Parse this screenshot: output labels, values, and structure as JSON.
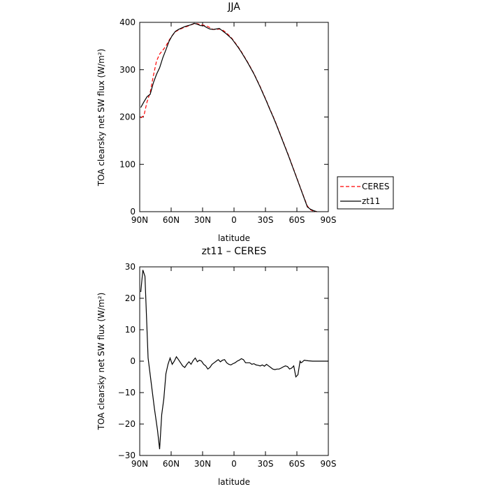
{
  "chart_data": [
    {
      "type": "line",
      "title": "JJA",
      "xlabel": "latitude",
      "ylabel": "TOA clearsky net SW flux (W/m²)",
      "xlim": [
        90,
        -90
      ],
      "ylim": [
        0,
        400
      ],
      "grid": false,
      "legend_position": "right",
      "x_ticks": [
        90,
        60,
        30,
        0,
        -30,
        -60,
        -90
      ],
      "x_tick_labels": [
        "90N",
        "60N",
        "30N",
        "0",
        "30S",
        "60S",
        "90S"
      ],
      "y_ticks": [
        0,
        100,
        200,
        300,
        400
      ],
      "y_tick_labels": [
        "0",
        "100",
        "200",
        "300",
        "400"
      ],
      "series": [
        {
          "name": "CERES",
          "color": "#ff0000",
          "dash": "dashed",
          "points": [
            [
              89,
              198
            ],
            [
              86,
              203
            ],
            [
              83,
              232
            ],
            [
              80,
              252
            ],
            [
              77,
              287
            ],
            [
              74,
              318
            ],
            [
              71,
              333
            ],
            [
              68,
              341
            ],
            [
              65,
              350
            ],
            [
              62,
              362
            ],
            [
              59,
              372
            ],
            [
              56,
              380
            ],
            [
              53,
              384
            ],
            [
              50,
              387
            ],
            [
              47,
              390
            ],
            [
              44,
              392
            ],
            [
              41,
              395
            ],
            [
              38,
              397
            ],
            [
              35,
              397
            ],
            [
              32,
              395
            ],
            [
              29,
              394
            ],
            [
              26,
              392
            ],
            [
              23,
              389
            ],
            [
              20,
              385
            ],
            [
              17,
              385
            ],
            [
              14,
              386
            ],
            [
              11,
              384
            ],
            [
              8,
              379
            ],
            [
              5,
              373
            ],
            [
              2,
              366
            ],
            [
              -1,
              357
            ],
            [
              -4,
              348
            ],
            [
              -7,
              338
            ],
            [
              -10,
              327
            ],
            [
              -13,
              316
            ],
            [
              -16,
              304
            ],
            [
              -19,
              292
            ],
            [
              -22,
              278
            ],
            [
              -25,
              264
            ],
            [
              -28,
              249
            ],
            [
              -31,
              234
            ],
            [
              -34,
              218
            ],
            [
              -37,
              203
            ],
            [
              -40,
              187
            ],
            [
              -43,
              170
            ],
            [
              -46,
              153
            ],
            [
              -49,
              136
            ],
            [
              -52,
              119
            ],
            [
              -55,
              101
            ],
            [
              -58,
              83
            ],
            [
              -61,
              65
            ],
            [
              -64,
              47
            ],
            [
              -67,
              29
            ],
            [
              -70,
              12
            ],
            [
              -73,
              4
            ],
            [
              -76,
              1
            ],
            [
              -79,
              0
            ]
          ]
        },
        {
          "name": "zt11",
          "color": "#000000",
          "dash": "solid",
          "points": [
            [
              89,
              220
            ],
            [
              86,
              232
            ],
            [
              83,
              243
            ],
            [
              80,
              248
            ],
            [
              77,
              272
            ],
            [
              74,
              290
            ],
            [
              71,
              304
            ],
            [
              68,
              325
            ],
            [
              65,
              342
            ],
            [
              62,
              360
            ],
            [
              59,
              372
            ],
            [
              56,
              381
            ],
            [
              53,
              385
            ],
            [
              50,
              388
            ],
            [
              47,
              391
            ],
            [
              44,
              393
            ],
            [
              41,
              395
            ],
            [
              38,
              398
            ],
            [
              35,
              396
            ],
            [
              32,
              393
            ],
            [
              29,
              393
            ],
            [
              26,
              389
            ],
            [
              23,
              386
            ],
            [
              20,
              385
            ],
            [
              17,
              386
            ],
            [
              14,
              387
            ],
            [
              11,
              382
            ],
            [
              8,
              377
            ],
            [
              5,
              371
            ],
            [
              2,
              365
            ],
            [
              -1,
              356
            ],
            [
              -4,
              347
            ],
            [
              -7,
              337
            ],
            [
              -10,
              326
            ],
            [
              -13,
              315
            ],
            [
              -16,
              303
            ],
            [
              -19,
              291
            ],
            [
              -22,
              277
            ],
            [
              -25,
              263
            ],
            [
              -28,
              248
            ],
            [
              -31,
              233
            ],
            [
              -34,
              217
            ],
            [
              -37,
              202
            ],
            [
              -40,
              186
            ],
            [
              -43,
              169
            ],
            [
              -46,
              152
            ],
            [
              -49,
              135
            ],
            [
              -52,
              118
            ],
            [
              -55,
              100
            ],
            [
              -58,
              82
            ],
            [
              -61,
              64
            ],
            [
              -64,
              46
            ],
            [
              -67,
              28
            ],
            [
              -70,
              10
            ],
            [
              -73,
              5
            ],
            [
              -76,
              2
            ],
            [
              -79,
              0
            ]
          ]
        }
      ]
    },
    {
      "type": "line",
      "title": "zt11 – CERES",
      "xlabel": "latitude",
      "ylabel": "TOA clearsky net SW flux (W/m²)",
      "xlim": [
        90,
        -90
      ],
      "ylim": [
        -30,
        30
      ],
      "grid": false,
      "x_ticks": [
        90,
        60,
        30,
        0,
        -30,
        -60,
        -90
      ],
      "x_tick_labels": [
        "90N",
        "60N",
        "30N",
        "0",
        "30S",
        "60S",
        "90S"
      ],
      "y_ticks": [
        -30,
        -20,
        -10,
        0,
        10,
        20,
        30
      ],
      "y_tick_labels": [
        "−30",
        "−20",
        "−10",
        "0",
        "10",
        "20",
        "30"
      ],
      "series": [
        {
          "color": "#000000",
          "dash": "solid",
          "points": [
            [
              89,
              22
            ],
            [
              87,
              29
            ],
            [
              85,
              27
            ],
            [
              82,
              1
            ],
            [
              79,
              -7
            ],
            [
              76,
              -15
            ],
            [
              73,
              -22
            ],
            [
              71,
              -28
            ],
            [
              69,
              -17
            ],
            [
              67,
              -12
            ],
            [
              65,
              -4
            ],
            [
              63,
              -1
            ],
            [
              61,
              1
            ],
            [
              59,
              -1
            ],
            [
              57,
              0
            ],
            [
              55,
              1.4
            ],
            [
              53,
              0.5
            ],
            [
              51,
              -0.5
            ],
            [
              49,
              -1.5
            ],
            [
              47,
              -2
            ],
            [
              45,
              -1
            ],
            [
              43,
              -0.2
            ],
            [
              41,
              -1
            ],
            [
              39,
              0.2
            ],
            [
              37,
              1
            ],
            [
              35,
              -0.2
            ],
            [
              33,
              0.3
            ],
            [
              31,
              0
            ],
            [
              29,
              -1
            ],
            [
              27,
              -1.5
            ],
            [
              25,
              -2.5
            ],
            [
              23,
              -2
            ],
            [
              21,
              -1
            ],
            [
              19,
              -0.5
            ],
            [
              17,
              0
            ],
            [
              15,
              0.5
            ],
            [
              13,
              -0.2
            ],
            [
              11,
              0.3
            ],
            [
              9,
              0.5
            ],
            [
              7,
              -0.5
            ],
            [
              5,
              -1
            ],
            [
              3,
              -1.2
            ],
            [
              1,
              -0.8
            ],
            [
              -1,
              -0.5
            ],
            [
              -3,
              0
            ],
            [
              -5,
              0.3
            ],
            [
              -7,
              0.8
            ],
            [
              -9,
              0.5
            ],
            [
              -11,
              -0.5
            ],
            [
              -13,
              -0.5
            ],
            [
              -15,
              -0.5
            ],
            [
              -17,
              -1
            ],
            [
              -19,
              -0.8
            ],
            [
              -21,
              -1.2
            ],
            [
              -23,
              -1.3
            ],
            [
              -25,
              -1.5
            ],
            [
              -27,
              -1.2
            ],
            [
              -29,
              -1.6
            ],
            [
              -31,
              -1
            ],
            [
              -33,
              -1.5
            ],
            [
              -35,
              -2
            ],
            [
              -37,
              -2.5
            ],
            [
              -39,
              -2.7
            ],
            [
              -41,
              -2.5
            ],
            [
              -43,
              -2.5
            ],
            [
              -45,
              -2.2
            ],
            [
              -47,
              -1.8
            ],
            [
              -49,
              -1.5
            ],
            [
              -51,
              -1.7
            ],
            [
              -53,
              -2.5
            ],
            [
              -55,
              -2.2
            ],
            [
              -57,
              -1.5
            ],
            [
              -59,
              -5
            ],
            [
              -61,
              -4.3
            ],
            [
              -63,
              0
            ],
            [
              -64,
              -0.5
            ],
            [
              -65,
              -0.3
            ],
            [
              -67,
              0.3
            ],
            [
              -69,
              0.2
            ],
            [
              -71,
              0.1
            ],
            [
              -75,
              0
            ],
            [
              -79,
              0
            ],
            [
              -90,
              0
            ]
          ]
        }
      ]
    }
  ]
}
